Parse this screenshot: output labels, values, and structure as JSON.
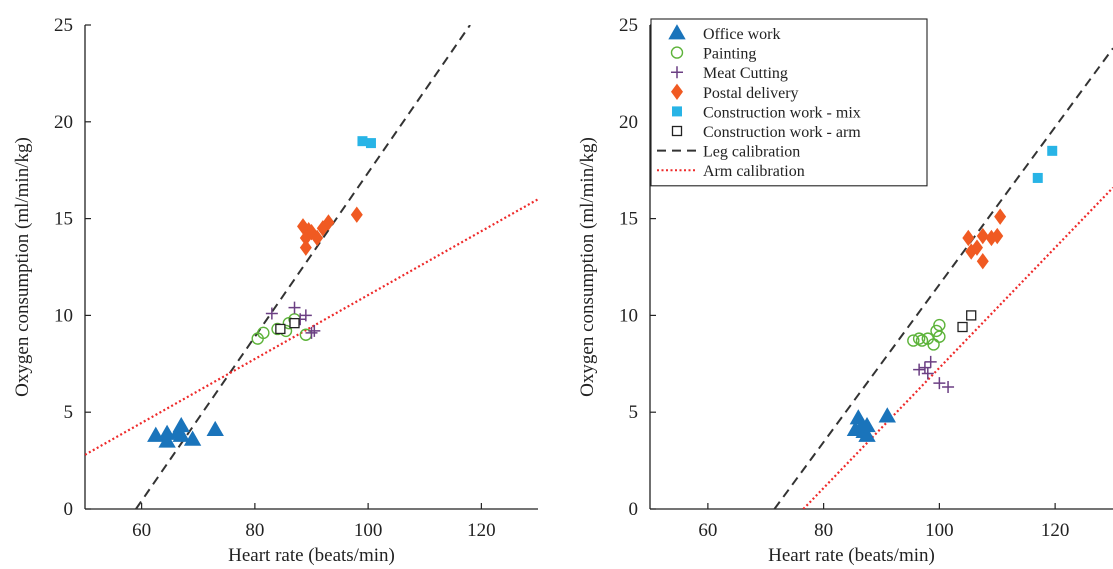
{
  "chart_data": [
    {
      "type": "scatter",
      "xlabel": "Heart rate (beats/min)",
      "ylabel": "Oxygen consumption (ml/min/kg)",
      "xlim": [
        50,
        130
      ],
      "ylim": [
        0,
        25
      ],
      "xticks": [
        60,
        80,
        100,
        120
      ],
      "yticks": [
        0,
        5,
        10,
        15,
        20,
        25
      ],
      "xtick_labels": [
        "60",
        "80",
        "100",
        "120"
      ],
      "ytick_labels": [
        "0",
        "5",
        "10",
        "15",
        "20",
        "25"
      ],
      "grid": false,
      "legend": "none",
      "series": [
        {
          "key": "office",
          "marker": "triangle-filled",
          "color": "#1a74bb",
          "points": [
            [
              62.5,
              3.8
            ],
            [
              64.5,
              3.9
            ],
            [
              64.5,
              3.5
            ],
            [
              66.5,
              4.0
            ],
            [
              67,
              4.3
            ],
            [
              67,
              3.8
            ],
            [
              69,
              3.6
            ],
            [
              73,
              4.1
            ]
          ]
        },
        {
          "key": "painting",
          "marker": "circle-open",
          "color": "#5db33a",
          "points": [
            [
              80.5,
              8.8
            ],
            [
              81.5,
              9.1
            ],
            [
              84,
              9.3
            ],
            [
              85.5,
              9.2
            ],
            [
              86,
              9.6
            ],
            [
              87,
              9.8
            ],
            [
              89,
              9.0
            ]
          ]
        },
        {
          "key": "meat",
          "marker": "plus",
          "color": "#6b3f83",
          "points": [
            [
              83,
              10.1
            ],
            [
              87,
              10.4
            ],
            [
              89,
              10.0
            ],
            [
              90,
              9.1
            ],
            [
              90.5,
              9.2
            ],
            [
              88,
              9.8
            ]
          ]
        },
        {
          "key": "postal",
          "marker": "diamond-filled",
          "color": "#f05a22",
          "points": [
            [
              88.5,
              14.6
            ],
            [
              89.5,
              14.4
            ],
            [
              89,
              14.0
            ],
            [
              90,
              14.3
            ],
            [
              91,
              14.0
            ],
            [
              92,
              14.5
            ],
            [
              93,
              14.8
            ],
            [
              89,
              13.5
            ],
            [
              98,
              15.2
            ]
          ]
        },
        {
          "key": "mix",
          "marker": "square-filled",
          "color": "#28b4e6",
          "points": [
            [
              99,
              19.0
            ],
            [
              100.5,
              18.9
            ]
          ]
        },
        {
          "key": "arm",
          "marker": "square-open",
          "color": "#222222",
          "points": [
            [
              84.5,
              9.3
            ],
            [
              87,
              9.6
            ]
          ]
        }
      ],
      "lines": [
        {
          "key": "leg",
          "style": "dashed",
          "color": "#333333",
          "points": [
            [
              59,
              0
            ],
            [
              118,
              25
            ]
          ]
        },
        {
          "key": "armcal",
          "style": "dotted",
          "color": "#ee2a2a",
          "points": [
            [
              50,
              2.8
            ],
            [
              130,
              16.0
            ]
          ]
        }
      ]
    },
    {
      "type": "scatter",
      "xlabel": "Heart rate (beats/min)",
      "ylabel": "Oxygen consumption (ml/min/kg)",
      "xlim": [
        50,
        130
      ],
      "ylim": [
        0,
        25
      ],
      "xticks": [
        60,
        80,
        100,
        120
      ],
      "yticks": [
        0,
        5,
        10,
        15,
        20,
        25
      ],
      "xtick_labels": [
        "60",
        "80",
        "100",
        "120"
      ],
      "ytick_labels": [
        "0",
        "5",
        "10",
        "15",
        "20",
        "25"
      ],
      "grid": false,
      "legend": "top-left",
      "series": [
        {
          "key": "office",
          "name": "Office work",
          "marker": "triangle-filled",
          "color": "#1a74bb",
          "points": [
            [
              85.5,
              4.1
            ],
            [
              86,
              4.7
            ],
            [
              86.5,
              4.2
            ],
            [
              87,
              4.0
            ],
            [
              87.5,
              3.8
            ],
            [
              87.5,
              4.3
            ],
            [
              91,
              4.8
            ]
          ]
        },
        {
          "key": "painting",
          "name": "Painting",
          "marker": "circle-open",
          "color": "#5db33a",
          "points": [
            [
              95.5,
              8.7
            ],
            [
              96.5,
              8.8
            ],
            [
              97,
              8.7
            ],
            [
              98,
              8.8
            ],
            [
              99,
              8.5
            ],
            [
              99.5,
              9.2
            ],
            [
              100,
              9.5
            ],
            [
              100,
              8.9
            ]
          ]
        },
        {
          "key": "meat",
          "name": "Meat Cutting",
          "marker": "plus",
          "color": "#6b3f83",
          "points": [
            [
              96.5,
              7.2
            ],
            [
              97.5,
              7.3
            ],
            [
              98,
              7.0
            ],
            [
              98.5,
              7.6
            ],
            [
              100,
              6.5
            ],
            [
              101.5,
              6.3
            ]
          ]
        },
        {
          "key": "postal",
          "name": "Postal delivery",
          "marker": "diamond-filled",
          "color": "#f05a22",
          "points": [
            [
              105,
              14.0
            ],
            [
              105.5,
              13.3
            ],
            [
              106.5,
              13.5
            ],
            [
              107.5,
              12.8
            ],
            [
              107.5,
              14.1
            ],
            [
              109,
              14.0
            ],
            [
              110,
              14.1
            ],
            [
              110.5,
              15.1
            ]
          ]
        },
        {
          "key": "mix",
          "name": "Construction work - mix",
          "marker": "square-filled",
          "color": "#28b4e6",
          "points": [
            [
              117,
              17.1
            ],
            [
              119.5,
              18.5
            ]
          ]
        },
        {
          "key": "arm",
          "name": "Construction work - arm",
          "marker": "square-open",
          "color": "#222222",
          "points": [
            [
              104,
              9.4
            ],
            [
              105.5,
              10.0
            ]
          ]
        }
      ],
      "lines": [
        {
          "key": "leg",
          "name": "Leg calibration",
          "style": "dashed",
          "color": "#333333",
          "points": [
            [
              71.5,
              0
            ],
            [
              130,
              23.8
            ]
          ]
        },
        {
          "key": "armcal",
          "name": "Arm calibration",
          "style": "dotted",
          "color": "#ee2a2a",
          "points": [
            [
              76.5,
              0
            ],
            [
              130,
              16.6
            ]
          ]
        }
      ]
    }
  ]
}
